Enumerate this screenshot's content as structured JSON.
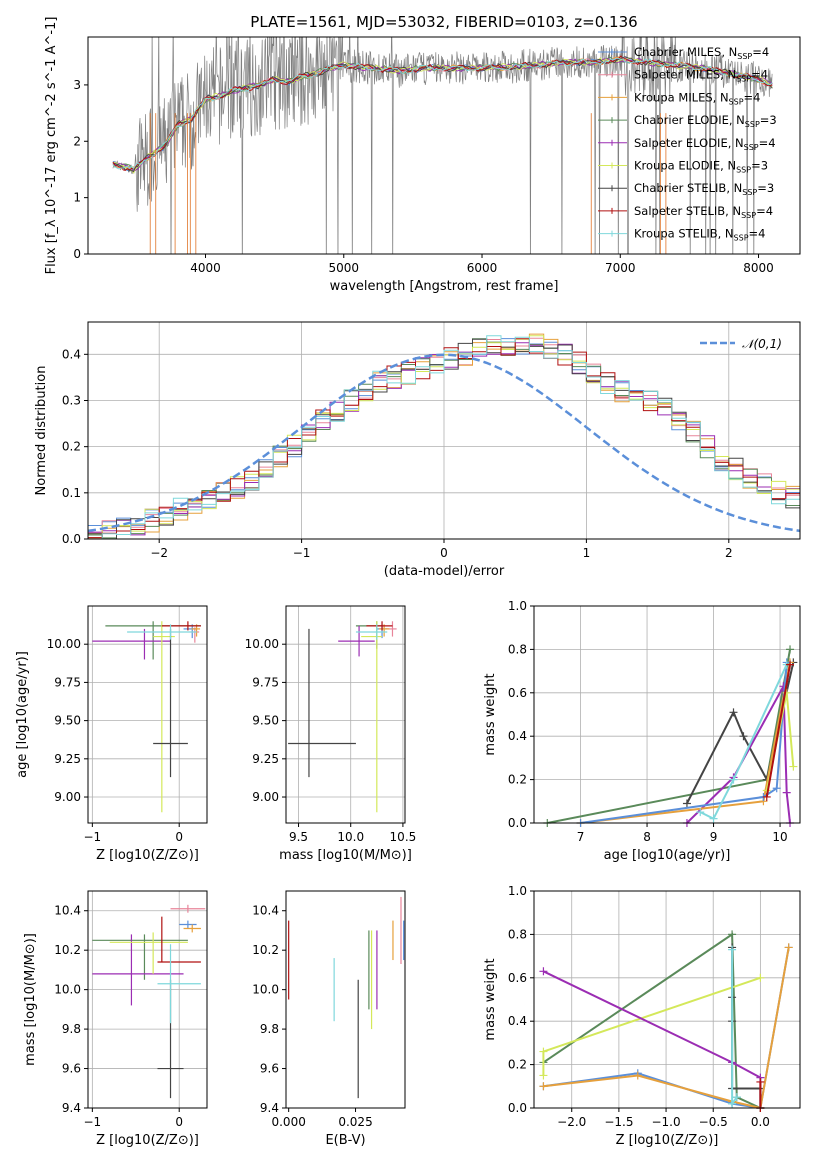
{
  "title": "PLATE=1561, MJD=53032, FIBERID=0103, z=0.136",
  "colors": {
    "Chabrier MILES": "#5b8fd9",
    "Salpeter MILES": "#e8859a",
    "Kroupa MILES": "#e6a03c",
    "Chabrier ELODIE": "#5a8a5a",
    "Salpeter ELODIE": "#9b2db3",
    "Kroupa ELODIE": "#d4e85a",
    "Chabrier STELIB": "#444444",
    "Salpeter STELIB": "#b01010",
    "Kroupa STELIB": "#7fd8dc",
    "data": "#808080",
    "gaussian": "#5b8fd9",
    "orange_line": "#e0752a"
  },
  "chart_data": [
    {
      "type": "line",
      "name": "spectrum",
      "xlabel": "wavelength [Angstrom, rest frame]",
      "ylabel": "Flux [f_λ 10^-17 erg cm^-2 s^-1 A^-1]",
      "xlim": [
        3150,
        8300
      ],
      "ylim": [
        0,
        3.85
      ],
      "xticks": [
        4000,
        5000,
        6000,
        7000,
        8000
      ],
      "yticks": [
        0,
        1,
        2,
        3
      ],
      "legend_position": "top-right",
      "legend": [
        "Chabrier MILES, N_SSP=4",
        "Salpeter MILES, N_SSP=4",
        "Kroupa MILES, N_SSP=4",
        "Chabrier ELODIE, N_SSP=3",
        "Salpeter ELODIE, N_SSP=4",
        "Kroupa ELODIE, N_SSP=3",
        "Chabrier STELIB, N_SSP=3",
        "Salpeter STELIB, N_SSP=4",
        "Kroupa STELIB, N_SSP=4"
      ],
      "model_curve": {
        "x": [
          3330,
          3400,
          3480,
          3600,
          3700,
          3800,
          3900,
          4000,
          4100,
          4200,
          4300,
          4400,
          4500,
          4600,
          4700,
          4800,
          4900,
          5000,
          5200,
          5400,
          5600,
          5800,
          6000,
          6200,
          6400,
          6600,
          6800,
          7000,
          7200,
          7400,
          7600,
          7800,
          8000,
          8100
        ],
        "y": [
          1.6,
          1.55,
          1.5,
          1.75,
          1.9,
          2.3,
          2.4,
          2.75,
          2.8,
          2.9,
          2.95,
          3.0,
          3.1,
          3.05,
          3.15,
          3.2,
          3.3,
          3.35,
          3.3,
          3.25,
          3.3,
          3.3,
          3.3,
          3.32,
          3.35,
          3.4,
          3.4,
          3.45,
          3.4,
          3.35,
          3.3,
          3.2,
          3.1,
          3.0
        ]
      }
    },
    {
      "type": "step-histogram",
      "name": "residuals",
      "xlabel": "(data-model)/error",
      "ylabel": "Normed distribution",
      "xlim": [
        -2.5,
        2.5
      ],
      "ylim": [
        0,
        0.47
      ],
      "xticks": [
        -2,
        -1,
        0,
        1,
        2
      ],
      "yticks": [
        0.0,
        0.1,
        0.2,
        0.3,
        0.4
      ],
      "grid": true,
      "legend": "𝒩(0,1)",
      "bin_width": 0.1,
      "bin_start": -2.5,
      "histogram": [
        0.015,
        0.02,
        0.025,
        0.03,
        0.04,
        0.05,
        0.065,
        0.075,
        0.085,
        0.1,
        0.11,
        0.13,
        0.15,
        0.18,
        0.2,
        0.23,
        0.26,
        0.28,
        0.3,
        0.32,
        0.34,
        0.35,
        0.36,
        0.37,
        0.38,
        0.39,
        0.4,
        0.41,
        0.42,
        0.42,
        0.42,
        0.42,
        0.41,
        0.4,
        0.38,
        0.36,
        0.34,
        0.32,
        0.31,
        0.3,
        0.28,
        0.26,
        0.23,
        0.2,
        0.17,
        0.15,
        0.13,
        0.12,
        0.1,
        0.09,
        0.08
      ]
    },
    {
      "type": "errorbar",
      "name": "age-vs-Z",
      "xlabel": "Z [log10(Z/Z⊙)]",
      "ylabel": "age  [log10(age/yr)]",
      "xlim": [
        -1.05,
        0.32
      ],
      "ylim": [
        8.83,
        10.25
      ],
      "xticks": [
        -1,
        0
      ],
      "yticks": [
        9.0,
        9.25,
        9.5,
        9.75,
        10.0
      ],
      "grid": true,
      "points": [
        {
          "model": "Chabrier MILES",
          "x": 0.15,
          "y": 10.1,
          "xerr": [
            0.1,
            0.06
          ],
          "yerr": [
            0.06,
            0.03
          ]
        },
        {
          "model": "Salpeter MILES",
          "x": 0.18,
          "y": 10.08,
          "xerr": [
            0.05,
            0.05
          ],
          "yerr": [
            0.07,
            0.03
          ]
        },
        {
          "model": "Kroupa MILES",
          "x": 0.2,
          "y": 10.1,
          "xerr": [
            0.06,
            0.04
          ],
          "yerr": [
            0.05,
            0.03
          ]
        },
        {
          "model": "Chabrier ELODIE",
          "x": -0.3,
          "y": 10.12,
          "xerr": [
            0.55,
            0.55
          ],
          "yerr": [
            0.22,
            0.03
          ]
        },
        {
          "model": "Salpeter ELODIE",
          "x": -0.4,
          "y": 10.02,
          "xerr": [
            0.6,
            0.3
          ],
          "yerr": [
            0.12,
            0.08
          ]
        },
        {
          "model": "Kroupa ELODIE",
          "x": -0.2,
          "y": 10.05,
          "xerr": [
            0.1,
            0.15
          ],
          "yerr": [
            1.15,
            0.1
          ]
        },
        {
          "model": "Chabrier STELIB",
          "x": -0.1,
          "y": 9.35,
          "xerr": [
            0.2,
            0.2
          ],
          "yerr": [
            0.22,
            0.75
          ]
        },
        {
          "model": "Salpeter STELIB",
          "x": 0.1,
          "y": 10.12,
          "xerr": [
            0.3,
            0.15
          ],
          "yerr": [
            0.03,
            0.03
          ]
        },
        {
          "model": "Kroupa STELIB",
          "x": -0.1,
          "y": 10.08,
          "xerr": [
            0.5,
            0.3
          ],
          "yerr": [
            0.05,
            0.05
          ]
        }
      ]
    },
    {
      "type": "errorbar",
      "name": "age-vs-mass",
      "xlabel": "mass [log10(M/M⊙)]",
      "ylabel": "",
      "xlim": [
        9.38,
        10.52
      ],
      "ylim": [
        8.83,
        10.25
      ],
      "xticks": [
        9.5,
        10.0,
        10.5
      ],
      "yticks": [
        9.0,
        9.25,
        9.5,
        9.75,
        10.0
      ],
      "grid": true,
      "points": [
        {
          "model": "Chabrier MILES",
          "x": 10.3,
          "y": 10.1,
          "xerr": [
            0.05,
            0.05
          ],
          "yerr": [
            0.06,
            0.03
          ]
        },
        {
          "model": "Salpeter MILES",
          "x": 10.4,
          "y": 10.1,
          "xerr": [
            0.06,
            0.04
          ],
          "yerr": [
            0.05,
            0.05
          ]
        },
        {
          "model": "Kroupa MILES",
          "x": 10.32,
          "y": 10.1,
          "xerr": [
            0.05,
            0.05
          ],
          "yerr": [
            0.05,
            0.03
          ]
        },
        {
          "model": "Chabrier ELODIE",
          "x": 10.25,
          "y": 10.12,
          "xerr": [
            0.2,
            0.05
          ],
          "yerr": [
            0.15,
            0.03
          ]
        },
        {
          "model": "Salpeter ELODIE",
          "x": 10.08,
          "y": 10.02,
          "xerr": [
            0.2,
            0.15
          ],
          "yerr": [
            0.1,
            0.1
          ]
        },
        {
          "model": "Kroupa ELODIE",
          "x": 10.25,
          "y": 10.05,
          "xerr": [
            0.15,
            0.05
          ],
          "yerr": [
            1.15,
            0.1
          ]
        },
        {
          "model": "Chabrier STELIB",
          "x": 9.6,
          "y": 9.35,
          "xerr": [
            0.2,
            0.45
          ],
          "yerr": [
            0.22,
            0.75
          ]
        },
        {
          "model": "Salpeter STELIB",
          "x": 10.3,
          "y": 10.12,
          "xerr": [
            0.15,
            0.1
          ],
          "yerr": [
            0.03,
            0.03
          ]
        },
        {
          "model": "Kroupa STELIB",
          "x": 10.25,
          "y": 10.08,
          "xerr": [
            0.2,
            0.1
          ],
          "yerr": [
            0.05,
            0.05
          ]
        }
      ]
    },
    {
      "type": "line",
      "name": "mass-weight-vs-age",
      "xlabel": "age  [log10(age/yr)]",
      "ylabel": "mass weight",
      "xlim": [
        6.3,
        10.3
      ],
      "ylim": [
        0,
        1.0
      ],
      "xticks": [
        7,
        8,
        9,
        10
      ],
      "yticks": [
        0.0,
        0.2,
        0.4,
        0.6,
        0.8,
        1.0
      ],
      "grid": true,
      "series": [
        {
          "model": "Chabrier ELODIE",
          "x": [
            6.5,
            9.8,
            10.15
          ],
          "y": [
            0.0,
            0.2,
            0.8
          ]
        },
        {
          "model": "Chabrier STELIB",
          "x": [
            8.6,
            9.3,
            9.45,
            9.8,
            10.2
          ],
          "y": [
            0.09,
            0.51,
            0.4,
            0.2,
            0.74
          ]
        },
        {
          "model": "Salpeter ELODIE",
          "x": [
            8.6,
            9.3,
            10.05,
            10.1,
            10.15
          ],
          "y": [
            0.0,
            0.21,
            0.63,
            0.14,
            0.0
          ]
        },
        {
          "model": "Kroupa MILES",
          "x": [
            7.0,
            9.75,
            10.15
          ],
          "y": [
            0.0,
            0.1,
            0.74
          ]
        },
        {
          "model": "Chabrier MILES",
          "x": [
            7.0,
            9.75,
            9.95,
            10.1
          ],
          "y": [
            0.0,
            0.12,
            0.16,
            0.74
          ]
        },
        {
          "model": "Kroupa ELODIE",
          "x": [
            9.8,
            10.1,
            10.2
          ],
          "y": [
            0.15,
            0.6,
            0.26
          ]
        },
        {
          "model": "Kroupa STELIB",
          "x": [
            8.8,
            9.0,
            9.3,
            10.1
          ],
          "y": [
            0.05,
            0.02,
            0.2,
            0.73
          ]
        },
        {
          "model": "Salpeter STELIB",
          "x": [
            9.8,
            10.15
          ],
          "y": [
            0.12,
            0.73
          ]
        }
      ]
    },
    {
      "type": "errorbar",
      "name": "mass-vs-Z",
      "xlabel": "Z [log10(Z/Z⊙)]",
      "ylabel": "mass [log10(M/M⊙)]",
      "xlim": [
        -1.05,
        0.32
      ],
      "ylim": [
        9.4,
        10.5
      ],
      "xticks": [
        -1,
        0
      ],
      "yticks": [
        9.4,
        9.6,
        9.8,
        10.0,
        10.2,
        10.4
      ],
      "grid": true,
      "points": [
        {
          "model": "Chabrier MILES",
          "x": 0.1,
          "y": 10.33,
          "xerr": [
            0.1,
            0.1
          ],
          "yerr": [
            0.02,
            0.02
          ]
        },
        {
          "model": "Salpeter MILES",
          "x": 0.1,
          "y": 10.41,
          "xerr": [
            0.2,
            0.2
          ],
          "yerr": [
            0.02,
            0.02
          ]
        },
        {
          "model": "Kroupa MILES",
          "x": 0.15,
          "y": 10.31,
          "xerr": [
            0.1,
            0.1
          ],
          "yerr": [
            0.02,
            0.02
          ]
        },
        {
          "model": "Chabrier ELODIE",
          "x": -0.4,
          "y": 10.25,
          "xerr": [
            0.6,
            0.5
          ],
          "yerr": [
            0.2,
            0.03
          ]
        },
        {
          "model": "Salpeter ELODIE",
          "x": -0.55,
          "y": 10.08,
          "xerr": [
            0.45,
            0.6
          ],
          "yerr": [
            0.16,
            0.2
          ]
        },
        {
          "model": "Kroupa ELODIE",
          "x": -0.3,
          "y": 10.24,
          "xerr": [
            0.5,
            0.4
          ],
          "yerr": [
            0.16,
            0.05
          ]
        },
        {
          "model": "Chabrier STELIB",
          "x": -0.1,
          "y": 9.6,
          "xerr": [
            0.15,
            0.15
          ],
          "yerr": [
            0.15,
            0.45
          ]
        },
        {
          "model": "Salpeter STELIB",
          "x": -0.2,
          "y": 10.14,
          "xerr": [
            0.05,
            0.45
          ],
          "yerr": [
            0.0,
            0.23
          ]
        },
        {
          "model": "Kroupa STELIB",
          "x": -0.1,
          "y": 10.03,
          "xerr": [
            0.15,
            0.35
          ],
          "yerr": [
            0.2,
            0.2
          ]
        }
      ]
    },
    {
      "type": "errorbar",
      "name": "mass-vs-EBV",
      "xlabel": "E(B-V)",
      "ylabel": "",
      "xlim": [
        -0.001,
        0.0435
      ],
      "ylim": [
        9.4,
        10.5
      ],
      "xticks": [
        0.0,
        0.025
      ],
      "yticks": [
        9.4,
        9.6,
        9.8,
        10.0,
        10.2,
        10.4
      ],
      "grid": false,
      "points": [
        {
          "model": "Salpeter STELIB",
          "x": 0.0,
          "y": 10.15,
          "xerr": [
            0,
            0
          ],
          "yerr": [
            0.2,
            0.2
          ]
        },
        {
          "model": "Kroupa STELIB",
          "x": 0.017,
          "y": 10.0,
          "xerr": [
            0,
            0
          ],
          "yerr": [
            0.16,
            0.16
          ]
        },
        {
          "model": "Chabrier STELIB",
          "x": 0.026,
          "y": 9.75,
          "xerr": [
            0,
            0
          ],
          "yerr": [
            0.3,
            0.3
          ]
        },
        {
          "model": "Chabrier ELODIE",
          "x": 0.03,
          "y": 10.1,
          "xerr": [
            0,
            0
          ],
          "yerr": [
            0.2,
            0.2
          ]
        },
        {
          "model": "Kroupa ELODIE",
          "x": 0.031,
          "y": 10.05,
          "xerr": [
            0,
            0
          ],
          "yerr": [
            0.25,
            0.25
          ]
        },
        {
          "model": "Salpeter ELODIE",
          "x": 0.033,
          "y": 10.1,
          "xerr": [
            0,
            0
          ],
          "yerr": [
            0.2,
            0.2
          ]
        },
        {
          "model": "Kroupa MILES",
          "x": 0.039,
          "y": 10.25,
          "xerr": [
            0,
            0
          ],
          "yerr": [
            0.1,
            0.1
          ]
        },
        {
          "model": "Salpeter MILES",
          "x": 0.042,
          "y": 10.3,
          "xerr": [
            0,
            0
          ],
          "yerr": [
            0.17,
            0.17
          ]
        },
        {
          "model": "Chabrier MILES",
          "x": 0.043,
          "y": 10.25,
          "xerr": [
            0,
            0
          ],
          "yerr": [
            0.1,
            0.1
          ]
        }
      ]
    },
    {
      "type": "line",
      "name": "mass-weight-vs-Z",
      "xlabel": "Z [log10(Z/Z⊙)]",
      "ylabel": "mass weight",
      "xlim": [
        -2.4,
        0.42
      ],
      "ylim": [
        0,
        1.0
      ],
      "xticks": [
        -2.0,
        -1.5,
        -1.0,
        -0.5,
        0.0
      ],
      "yticks": [
        0.0,
        0.2,
        0.4,
        0.6,
        0.8,
        1.0
      ],
      "grid": true,
      "series": [
        {
          "model": "Chabrier ELODIE",
          "x": [
            -2.3,
            -0.3,
            -0.25,
            0.0
          ],
          "y": [
            0.21,
            0.8,
            0.05,
            0.0
          ]
        },
        {
          "model": "Kroupa ELODIE",
          "x": [
            -2.3,
            -2.3,
            0.0
          ],
          "y": [
            0.15,
            0.26,
            0.6
          ]
        },
        {
          "model": "Salpeter ELODIE",
          "x": [
            -2.3,
            -0.3,
            0.0,
            0.0
          ],
          "y": [
            0.63,
            0.21,
            0.14,
            0.0
          ]
        },
        {
          "model": "Chabrier STELIB",
          "x": [
            -0.3,
            -0.3,
            -0.3,
            -0.3,
            0.0,
            0.0
          ],
          "y": [
            0.74,
            0.51,
            0.4,
            0.09,
            0.09,
            0.0
          ]
        },
        {
          "model": "Chabrier MILES",
          "x": [
            -2.3,
            -1.3,
            -0.3,
            0.0,
            0.3
          ],
          "y": [
            0.1,
            0.16,
            0.02,
            0.0,
            0.74
          ]
        },
        {
          "model": "Kroupa MILES",
          "x": [
            -2.3,
            -1.3,
            -0.3,
            0.0,
            0.3
          ],
          "y": [
            0.1,
            0.15,
            0.03,
            0.0,
            0.74
          ]
        },
        {
          "model": "Kroupa STELIB",
          "x": [
            -0.3,
            -0.3,
            -0.25
          ],
          "y": [
            0.73,
            0.02,
            0.05
          ]
        },
        {
          "model": "Salpeter STELIB",
          "x": [
            0.0,
            0.0
          ],
          "y": [
            0.12,
            0.0
          ]
        }
      ]
    }
  ]
}
